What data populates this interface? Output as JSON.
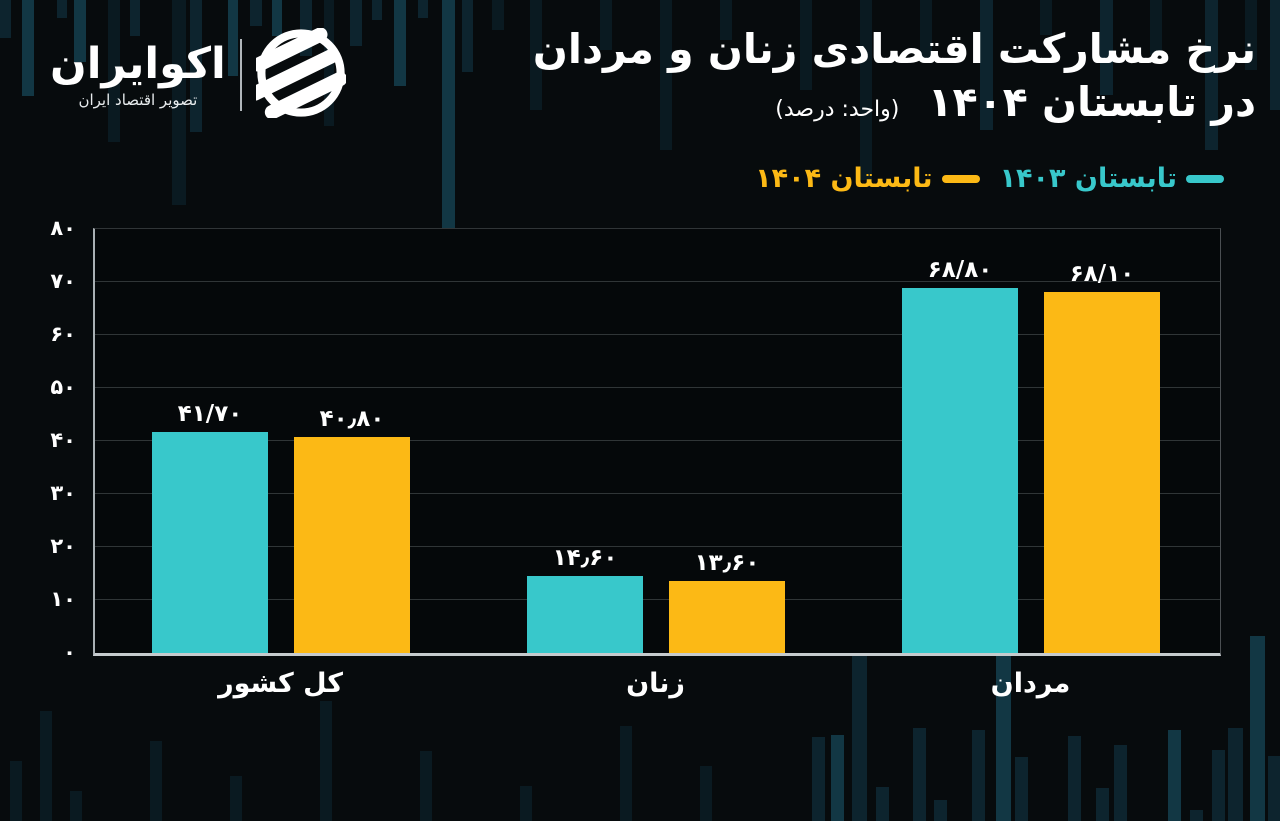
{
  "brand": {
    "name": "اکوایران",
    "tagline": "تصویر اقتصاد ایران",
    "emblem": "ecoiran-circle-stripes-logo"
  },
  "header": {
    "title_line1": "نرخ مشارکت اقتصادی زنان و مردان",
    "title_line2": "در تابستان ۱۴۰۴",
    "unit_note": "(واحد: درصد)"
  },
  "legend": [
    {
      "label": "تابستان ۱۴۰۳",
      "color": "#38c8cb"
    },
    {
      "label": "تابستان ۱۴۰۴",
      "color": "#fcb915"
    }
  ],
  "colors": {
    "background": "#070b0d",
    "plot_background": "#05080a",
    "gridline": "#303537",
    "axis": "#c6cbce",
    "text": "#ffffff",
    "series_1403": "#38c8cb",
    "series_1404": "#fcb915",
    "bg_bar_dim": "#0a1a21",
    "bg_bar_mid": "#0d242e",
    "bg_bar_bright": "#123744"
  },
  "chart_data": {
    "type": "bar",
    "title": "نرخ مشارکت اقتصادی زنان و مردان در تابستان ۱۴۰۴",
    "unit": "درصد",
    "categories": [
      "کل کشور",
      "زنان",
      "مردان"
    ],
    "series": [
      {
        "name": "تابستان ۱۴۰۳",
        "color": "#38c8cb",
        "values": [
          41.7,
          14.6,
          68.8
        ],
        "value_labels": [
          "۴۱/۷۰",
          "۱۴٫۶۰",
          "۶۸/۸۰"
        ]
      },
      {
        "name": "تابستان ۱۴۰۴",
        "color": "#fcb915",
        "values": [
          40.8,
          13.6,
          68.1
        ],
        "value_labels": [
          "۴۰٫۸۰",
          "۱۳٫۶۰",
          "۶۸/۱۰"
        ]
      }
    ],
    "ylim": [
      0,
      80
    ],
    "ytick_step": 10,
    "ytick_labels": [
      "۰",
      "۱۰",
      "۲۰",
      "۳۰",
      "۴۰",
      "۵۰",
      "۶۰",
      "۷۰",
      "۸۰"
    ],
    "xlabel": "",
    "ylabel": "",
    "grid": true,
    "legend_position": "top-right",
    "bar_orientation": "vertical"
  }
}
